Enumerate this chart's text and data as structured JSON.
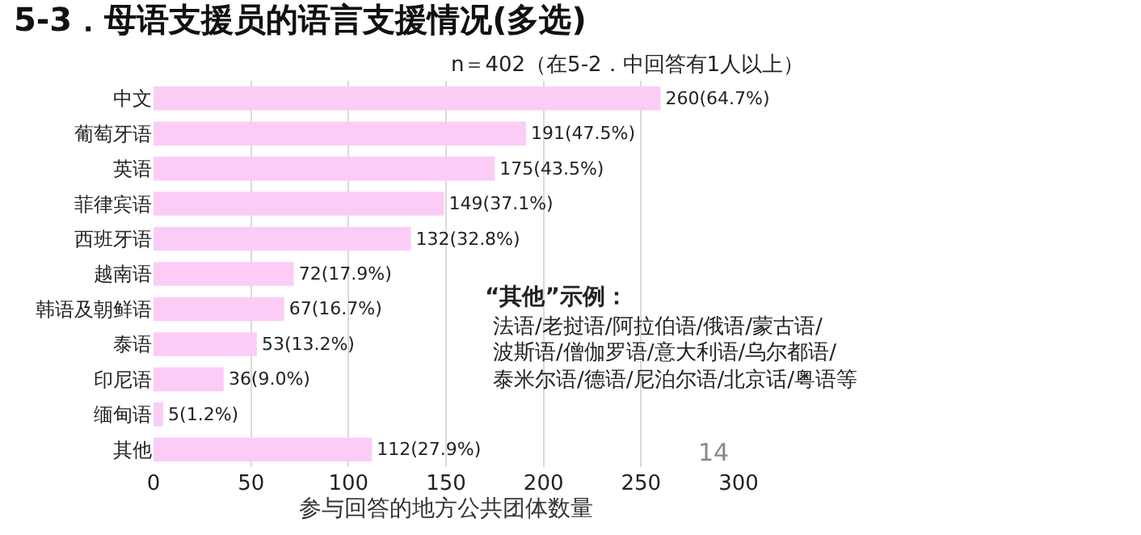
{
  "chart_data": {
    "type": "bar",
    "orientation": "horizontal",
    "title": "5-3．母语支援员的语言支援情况(多选)",
    "subtitle": "n＝402（在5-2．中回答有1人以上）",
    "xlabel": "参与回答的地方公共团体数量",
    "categories": [
      "中文",
      "葡萄牙语",
      "英语",
      "菲律宾语",
      "西班牙语",
      "越南语",
      "韩语及朝鲜语",
      "泰语",
      "印尼语",
      "缅甸语",
      "其他"
    ],
    "values": [
      260,
      191,
      175,
      149,
      132,
      72,
      67,
      53,
      36,
      5,
      112
    ],
    "value_labels": [
      "260(64.7%)",
      "191(47.5%)",
      "175(43.5%)",
      "149(37.1%)",
      "132(32.8%)",
      "72(17.9%)",
      "67(16.7%)",
      "53(13.2%)",
      "36(9.0%)",
      "5(1.2%)",
      "112(27.9%)"
    ],
    "color": "#fbcdf6",
    "xlim": [
      0,
      300
    ],
    "xticks": [
      0,
      50,
      100,
      150,
      200,
      250,
      300
    ],
    "grid": "x",
    "annotations": [
      "“其他”示例：",
      "法语/老挝语/阿拉伯语/俄语/蒙古语/",
      "波斯语/僧伽罗语/意大利语/乌尔都语/",
      "泰米尔语/德语/尼泊尔语/北京话/粤语等",
      "14"
    ]
  }
}
